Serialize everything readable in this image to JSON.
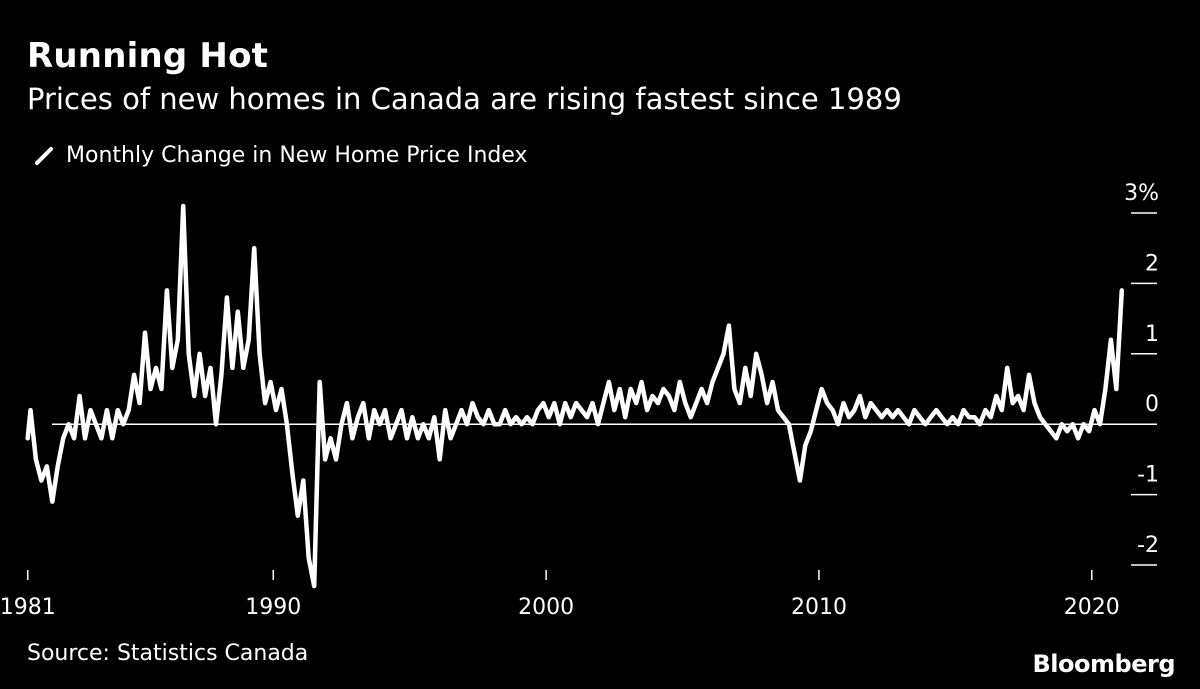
{
  "header": {
    "title": "Running Hot",
    "subtitle": "Prices of new homes in Canada are rising fastest since 1989"
  },
  "legend": {
    "label": "Monthly Change in New Home Price Index"
  },
  "footer": {
    "source": "Source: Statistics Canada",
    "brand": "Bloomberg"
  },
  "colors": {
    "background": "#000000",
    "line": "#ffffff",
    "text": "#ffffff"
  },
  "chart_data": {
    "type": "line",
    "title": "Running Hot",
    "subtitle": "Prices of new homes in Canada are rising fastest since 1989",
    "xlabel": "",
    "ylabel": "",
    "xlim": [
      1980.9,
      2022.5
    ],
    "ylim": [
      -2.3,
      3.3
    ],
    "x_ticks": [
      1981,
      1990,
      2000,
      2010,
      2020
    ],
    "x_tick_labels": [
      "1981",
      "1990",
      "2000",
      "2010",
      "2020"
    ],
    "y_ticks": [
      3,
      2,
      1,
      0,
      -1,
      -2
    ],
    "y_tick_labels": [
      "3%",
      "2",
      "1",
      "0",
      "-1",
      "-2"
    ],
    "grid": false,
    "zero_line": true,
    "legend_position": "top-left",
    "series": [
      {
        "name": "Monthly Change in New Home Price Index",
        "points": [
          [
            1981.0,
            -0.2
          ],
          [
            1981.1,
            0.2
          ],
          [
            1981.3,
            -0.5
          ],
          [
            1981.5,
            -0.8
          ],
          [
            1981.7,
            -0.6
          ],
          [
            1981.9,
            -1.1
          ],
          [
            1982.1,
            -0.6
          ],
          [
            1982.3,
            -0.2
          ],
          [
            1982.5,
            0.0
          ],
          [
            1982.7,
            -0.2
          ],
          [
            1982.9,
            0.4
          ],
          [
            1983.1,
            -0.2
          ],
          [
            1983.3,
            0.2
          ],
          [
            1983.5,
            0.0
          ],
          [
            1983.7,
            -0.2
          ],
          [
            1983.9,
            0.2
          ],
          [
            1984.1,
            -0.2
          ],
          [
            1984.3,
            0.2
          ],
          [
            1984.5,
            0.0
          ],
          [
            1984.7,
            0.2
          ],
          [
            1984.9,
            0.7
          ],
          [
            1985.1,
            0.3
          ],
          [
            1985.3,
            1.3
          ],
          [
            1985.5,
            0.5
          ],
          [
            1985.7,
            0.8
          ],
          [
            1985.9,
            0.5
          ],
          [
            1986.1,
            1.9
          ],
          [
            1986.3,
            0.8
          ],
          [
            1986.5,
            1.2
          ],
          [
            1986.7,
            3.1
          ],
          [
            1986.9,
            1.0
          ],
          [
            1987.1,
            0.4
          ],
          [
            1987.3,
            1.0
          ],
          [
            1987.5,
            0.4
          ],
          [
            1987.7,
            0.8
          ],
          [
            1987.9,
            0.0
          ],
          [
            1988.1,
            0.7
          ],
          [
            1988.3,
            1.8
          ],
          [
            1988.5,
            0.8
          ],
          [
            1988.7,
            1.6
          ],
          [
            1988.9,
            0.8
          ],
          [
            1989.1,
            1.2
          ],
          [
            1989.3,
            2.5
          ],
          [
            1989.5,
            1.0
          ],
          [
            1989.7,
            0.3
          ],
          [
            1989.9,
            0.6
          ],
          [
            1990.1,
            0.2
          ],
          [
            1990.3,
            0.5
          ],
          [
            1990.5,
            0.0
          ],
          [
            1990.7,
            -0.7
          ],
          [
            1990.9,
            -1.3
          ],
          [
            1991.1,
            -0.8
          ],
          [
            1991.3,
            -1.9
          ],
          [
            1991.5,
            -2.3
          ],
          [
            1991.7,
            0.6
          ],
          [
            1991.9,
            -0.5
          ],
          [
            1992.1,
            -0.2
          ],
          [
            1992.3,
            -0.5
          ],
          [
            1992.5,
            0.0
          ],
          [
            1992.7,
            0.3
          ],
          [
            1992.9,
            -0.2
          ],
          [
            1993.1,
            0.1
          ],
          [
            1993.3,
            0.3
          ],
          [
            1993.5,
            -0.2
          ],
          [
            1993.7,
            0.2
          ],
          [
            1993.9,
            0.0
          ],
          [
            1994.1,
            0.2
          ],
          [
            1994.3,
            -0.2
          ],
          [
            1994.5,
            0.0
          ],
          [
            1994.7,
            0.2
          ],
          [
            1994.9,
            -0.2
          ],
          [
            1995.1,
            0.1
          ],
          [
            1995.3,
            -0.2
          ],
          [
            1995.5,
            0.0
          ],
          [
            1995.7,
            -0.2
          ],
          [
            1995.9,
            0.1
          ],
          [
            1996.1,
            -0.5
          ],
          [
            1996.3,
            0.2
          ],
          [
            1996.5,
            -0.2
          ],
          [
            1996.7,
            0.0
          ],
          [
            1996.9,
            0.2
          ],
          [
            1997.1,
            0.0
          ],
          [
            1997.3,
            0.3
          ],
          [
            1997.5,
            0.1
          ],
          [
            1997.7,
            0.0
          ],
          [
            1997.9,
            0.2
          ],
          [
            1998.1,
            0.0
          ],
          [
            1998.3,
            0.0
          ],
          [
            1998.5,
            0.2
          ],
          [
            1998.7,
            0.0
          ],
          [
            1998.9,
            0.1
          ],
          [
            1999.1,
            0.0
          ],
          [
            1999.3,
            0.1
          ],
          [
            1999.5,
            0.0
          ],
          [
            1999.7,
            0.2
          ],
          [
            1999.9,
            0.3
          ],
          [
            2000.1,
            0.1
          ],
          [
            2000.3,
            0.3
          ],
          [
            2000.5,
            0.0
          ],
          [
            2000.7,
            0.3
          ],
          [
            2000.9,
            0.1
          ],
          [
            2001.1,
            0.3
          ],
          [
            2001.3,
            0.2
          ],
          [
            2001.5,
            0.1
          ],
          [
            2001.7,
            0.3
          ],
          [
            2001.9,
            0.0
          ],
          [
            2002.1,
            0.3
          ],
          [
            2002.3,
            0.6
          ],
          [
            2002.5,
            0.2
          ],
          [
            2002.7,
            0.5
          ],
          [
            2002.9,
            0.1
          ],
          [
            2003.1,
            0.5
          ],
          [
            2003.3,
            0.3
          ],
          [
            2003.5,
            0.6
          ],
          [
            2003.7,
            0.2
          ],
          [
            2003.9,
            0.4
          ],
          [
            2004.1,
            0.3
          ],
          [
            2004.3,
            0.5
          ],
          [
            2004.5,
            0.4
          ],
          [
            2004.7,
            0.2
          ],
          [
            2004.9,
            0.6
          ],
          [
            2005.1,
            0.3
          ],
          [
            2005.3,
            0.1
          ],
          [
            2005.5,
            0.3
          ],
          [
            2005.7,
            0.5
          ],
          [
            2005.9,
            0.3
          ],
          [
            2006.1,
            0.6
          ],
          [
            2006.3,
            0.8
          ],
          [
            2006.5,
            1.0
          ],
          [
            2006.7,
            1.4
          ],
          [
            2006.9,
            0.5
          ],
          [
            2007.1,
            0.3
          ],
          [
            2007.3,
            0.8
          ],
          [
            2007.5,
            0.4
          ],
          [
            2007.7,
            1.0
          ],
          [
            2007.9,
            0.7
          ],
          [
            2008.1,
            0.3
          ],
          [
            2008.3,
            0.6
          ],
          [
            2008.5,
            0.2
          ],
          [
            2008.7,
            0.1
          ],
          [
            2008.9,
            0.0
          ],
          [
            2009.1,
            -0.4
          ],
          [
            2009.3,
            -0.8
          ],
          [
            2009.5,
            -0.3
          ],
          [
            2009.7,
            -0.1
          ],
          [
            2009.9,
            0.2
          ],
          [
            2010.1,
            0.5
          ],
          [
            2010.3,
            0.3
          ],
          [
            2010.5,
            0.2
          ],
          [
            2010.7,
            0.0
          ],
          [
            2010.9,
            0.3
          ],
          [
            2011.1,
            0.1
          ],
          [
            2011.3,
            0.2
          ],
          [
            2011.5,
            0.4
          ],
          [
            2011.7,
            0.1
          ],
          [
            2011.9,
            0.3
          ],
          [
            2012.1,
            0.2
          ],
          [
            2012.3,
            0.1
          ],
          [
            2012.5,
            0.2
          ],
          [
            2012.7,
            0.1
          ],
          [
            2012.9,
            0.2
          ],
          [
            2013.1,
            0.1
          ],
          [
            2013.3,
            0.0
          ],
          [
            2013.5,
            0.2
          ],
          [
            2013.7,
            0.1
          ],
          [
            2013.9,
            0.0
          ],
          [
            2014.1,
            0.1
          ],
          [
            2014.3,
            0.2
          ],
          [
            2014.5,
            0.1
          ],
          [
            2014.7,
            0.0
          ],
          [
            2014.9,
            0.1
          ],
          [
            2015.1,
            0.0
          ],
          [
            2015.3,
            0.2
          ],
          [
            2015.5,
            0.1
          ],
          [
            2015.7,
            0.1
          ],
          [
            2015.9,
            0.0
          ],
          [
            2016.1,
            0.2
          ],
          [
            2016.3,
            0.1
          ],
          [
            2016.5,
            0.4
          ],
          [
            2016.7,
            0.2
          ],
          [
            2016.9,
            0.8
          ],
          [
            2017.1,
            0.3
          ],
          [
            2017.3,
            0.4
          ],
          [
            2017.5,
            0.2
          ],
          [
            2017.7,
            0.7
          ],
          [
            2017.9,
            0.3
          ],
          [
            2018.1,
            0.1
          ],
          [
            2018.3,
            0.0
          ],
          [
            2018.5,
            -0.1
          ],
          [
            2018.7,
            -0.2
          ],
          [
            2018.9,
            0.0
          ],
          [
            2019.1,
            -0.1
          ],
          [
            2019.3,
            0.0
          ],
          [
            2019.5,
            -0.2
          ],
          [
            2019.7,
            0.0
          ],
          [
            2019.9,
            -0.1
          ],
          [
            2020.1,
            0.2
          ],
          [
            2020.3,
            0.0
          ],
          [
            2020.5,
            0.5
          ],
          [
            2020.7,
            1.2
          ],
          [
            2020.9,
            0.5
          ],
          [
            2021.1,
            1.9
          ]
        ]
      }
    ]
  }
}
